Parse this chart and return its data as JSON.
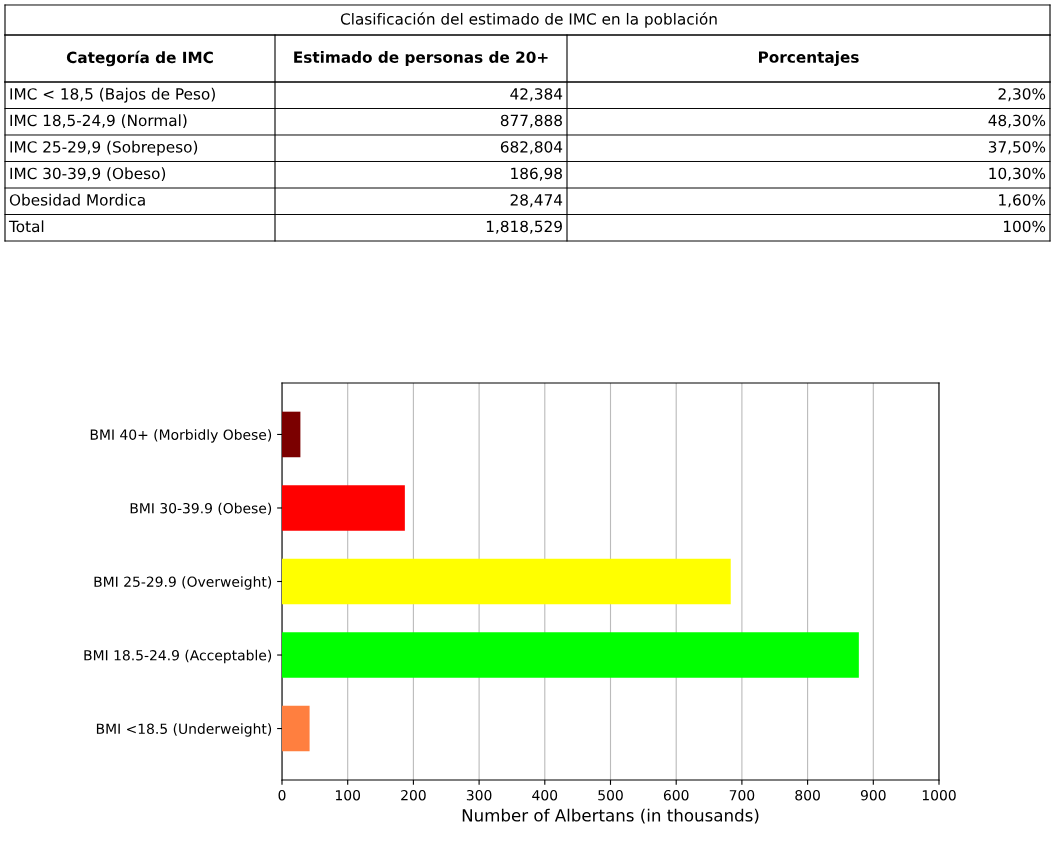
{
  "chart_data": [
    {
      "type": "other",
      "title": "Clasificación del estimado de IMC en la población",
      "categories": [
        "Categoría de IMC",
        "Estimado de personas de 20+",
        "Porcentajes"
      ],
      "cell_labels": [
        [
          "IMC < 18,5 (Bajos de Peso)",
          "42,384",
          "2,30%"
        ],
        [
          "IMC 18,5-24,9 (Normal)",
          "877,888",
          "48,30%"
        ],
        [
          "IMC 25-29,9 (Sobrepeso)",
          "682,804",
          "37,50%"
        ],
        [
          "IMC 30-39,9 (Obeso)",
          "186,98",
          "10,30%"
        ],
        [
          "Obesidad Mordica",
          "28,474",
          "1,60%"
        ],
        [
          "Total",
          "1,818,529",
          "100%"
        ]
      ]
    },
    {
      "type": "bar",
      "orientation": "horizontal",
      "categories": [
        "BMI 40+ (Morbidly Obese)",
        "BMI 30-39.9 (Obese)",
        "BMI 25-29.9 (Overweight)",
        "BMI 18.5-24.9 (Acceptable)",
        "BMI <18.5 (Underweight)"
      ],
      "values": [
        28,
        187,
        683,
        878,
        42
      ],
      "colors": [
        "#7b0000",
        "#ff0000",
        "#ffff00",
        "#00ff00",
        "#ff7f3f"
      ],
      "xlim": [
        0,
        1000
      ],
      "xticks": [
        0,
        100,
        200,
        300,
        400,
        500,
        600,
        700,
        800,
        900,
        1000
      ],
      "xlabel": "Number of Albertans (in thousands)",
      "grid": "x"
    }
  ]
}
